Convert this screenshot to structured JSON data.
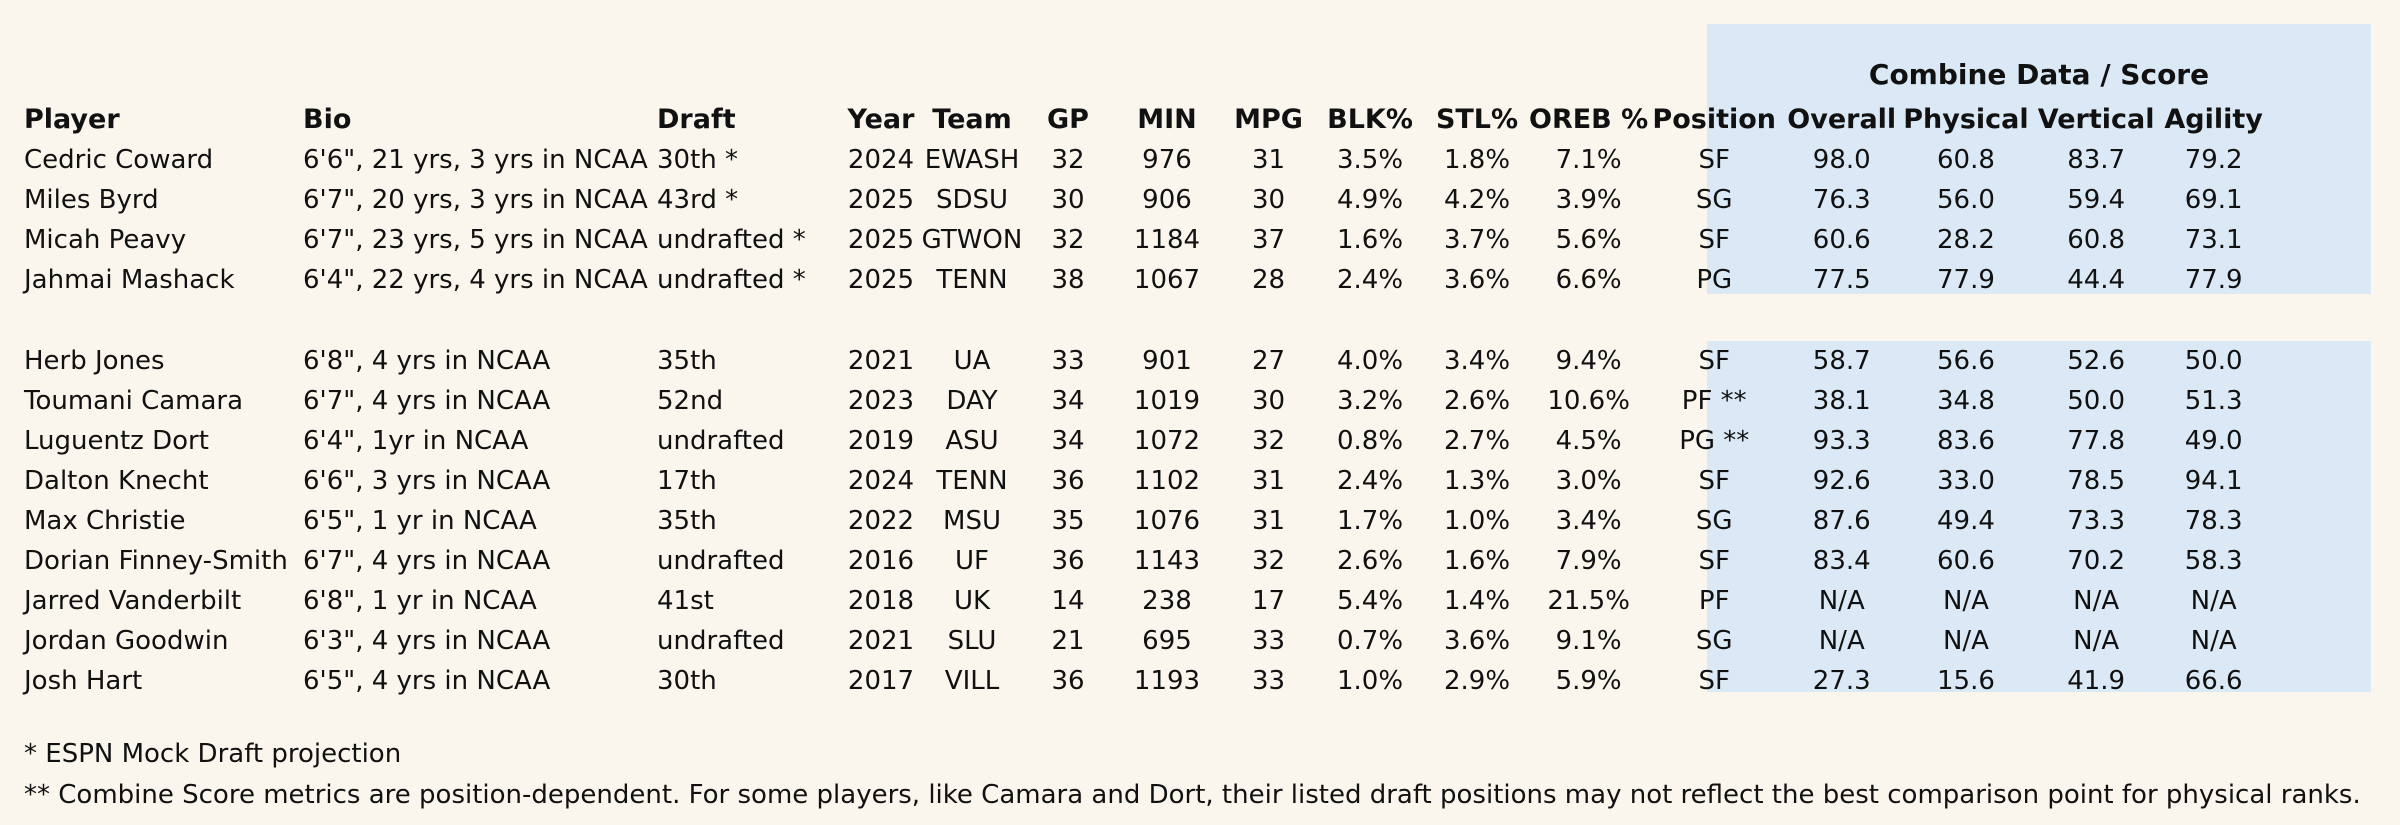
{
  "combine_header": "Combine Data / Score",
  "columns": [
    "Player",
    "Bio",
    "Draft",
    "Year",
    "Team",
    "GP",
    "MIN",
    "MPG",
    "BLK%",
    "STL%",
    "OREB %",
    "Position",
    "Overall",
    "Physical",
    "Vertical",
    "Agility"
  ],
  "group1": [
    [
      "Cedric Coward",
      "6'6\", 21 yrs, 3 yrs in NCAA",
      "30th *",
      "2024",
      "EWASH",
      "32",
      "976",
      "31",
      "3.5%",
      "1.8%",
      "7.1%",
      "SF",
      "98.0",
      "60.8",
      "83.7",
      "79.2"
    ],
    [
      "Miles Byrd",
      "6'7\", 20 yrs, 3 yrs in NCAA",
      "43rd *",
      "2025",
      "SDSU",
      "30",
      "906",
      "30",
      "4.9%",
      "4.2%",
      "3.9%",
      "SG",
      "76.3",
      "56.0",
      "59.4",
      "69.1"
    ],
    [
      "Micah Peavy",
      "6'7\", 23 yrs, 5 yrs in NCAA",
      "undrafted *",
      "2025",
      "GTWON",
      "32",
      "1184",
      "37",
      "1.6%",
      "3.7%",
      "5.6%",
      "SF",
      "60.6",
      "28.2",
      "60.8",
      "73.1"
    ],
    [
      "Jahmai Mashack",
      "6'4\", 22 yrs, 4 yrs in NCAA",
      "undrafted *",
      "2025",
      "TENN",
      "38",
      "1067",
      "28",
      "2.4%",
      "3.6%",
      "6.6%",
      "PG",
      "77.5",
      "77.9",
      "44.4",
      "77.9"
    ]
  ],
  "group2": [
    [
      "Herb Jones",
      "6'8\", 4 yrs in NCAA",
      "35th",
      "2021",
      "UA",
      "33",
      "901",
      "27",
      "4.0%",
      "3.4%",
      "9.4%",
      "SF",
      "58.7",
      "56.6",
      "52.6",
      "50.0"
    ],
    [
      "Toumani Camara",
      "6'7\", 4 yrs in NCAA",
      "52nd",
      "2023",
      "DAY",
      "34",
      "1019",
      "30",
      "3.2%",
      "2.6%",
      "10.6%",
      "PF **",
      "38.1",
      "34.8",
      "50.0",
      "51.3"
    ],
    [
      "Luguentz Dort",
      "6'4\", 1yr in NCAA",
      "undrafted",
      "2019",
      "ASU",
      "34",
      "1072",
      "32",
      "0.8%",
      "2.7%",
      "4.5%",
      "PG **",
      "93.3",
      "83.6",
      "77.8",
      "49.0"
    ],
    [
      "Dalton Knecht",
      "6'6\",  3 yrs in NCAA",
      "17th",
      "2024",
      "TENN",
      "36",
      "1102",
      "31",
      "2.4%",
      "1.3%",
      "3.0%",
      "SF",
      "92.6",
      "33.0",
      "78.5",
      "94.1"
    ],
    [
      "Max Christie",
      "6'5\", 1 yr in NCAA",
      "35th",
      "2022",
      "MSU",
      "35",
      "1076",
      "31",
      "1.7%",
      "1.0%",
      "3.4%",
      "SG",
      "87.6",
      "49.4",
      "73.3",
      "78.3"
    ],
    [
      "Dorian Finney-Smith",
      "6'7\", 4 yrs in NCAA",
      "undrafted",
      "2016",
      "UF",
      "36",
      "1143",
      "32",
      "2.6%",
      "1.6%",
      "7.9%",
      "SF",
      "83.4",
      "60.6",
      "70.2",
      "58.3"
    ],
    [
      "Jarred Vanderbilt",
      "6'8\", 1 yr in NCAA",
      "41st",
      "2018",
      "UK",
      "14",
      "238",
      "17",
      "5.4%",
      "1.4%",
      "21.5%",
      "PF",
      "N/A",
      "N/A",
      "N/A",
      "N/A"
    ],
    [
      "Jordan Goodwin",
      "6'3\", 4 yrs in NCAA",
      "undrafted",
      "2021",
      "SLU",
      "21",
      "695",
      "33",
      "0.7%",
      "3.6%",
      "9.1%",
      "SG",
      "N/A",
      "N/A",
      "N/A",
      "N/A"
    ],
    [
      "Josh Hart",
      "6'5\", 4 yrs in NCAA",
      "30th",
      "2017",
      "VILL",
      "36",
      "1193",
      "33",
      "1.0%",
      "2.9%",
      "5.9%",
      "SF",
      "27.3",
      "15.6",
      "41.9",
      "66.6"
    ]
  ],
  "notes": [
    "* ESPN Mock Draft projection",
    "** Combine Score metrics are position-dependent. For some players, like Camara and Dort, their listed draft positions may not reflect the best comparison point for physical ranks."
  ]
}
